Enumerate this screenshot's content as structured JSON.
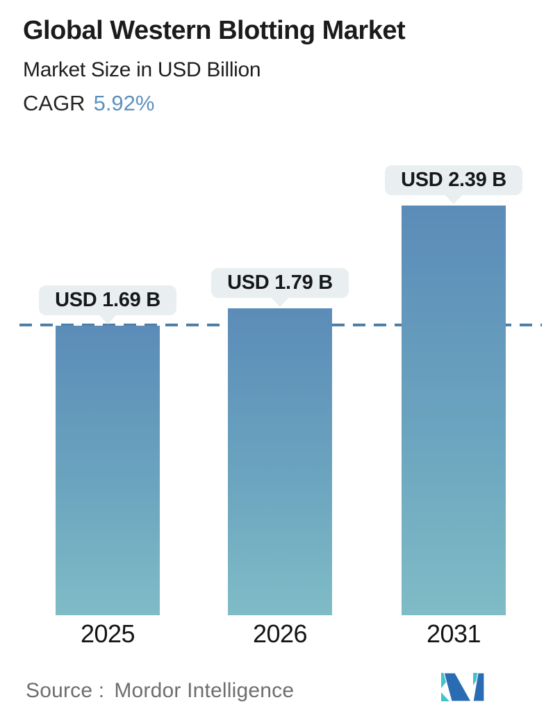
{
  "header": {
    "title": "Global Western Blotting Market",
    "subtitle": "Market Size in USD Billion",
    "cagr_label": "CAGR",
    "cagr_value": "5.92%"
  },
  "chart_data": {
    "type": "bar",
    "title": "Global Western Blotting Market",
    "subtitle": "Market Size in USD Billion",
    "cagr": "5.92%",
    "unit": "USD Billion",
    "categories": [
      "2025",
      "2026",
      "2031"
    ],
    "values": [
      1.69,
      1.79,
      2.39
    ],
    "bar_labels": [
      "USD 1.69 B",
      "USD 1.79 B",
      "USD 2.39 B"
    ],
    "reference_line_value": 1.69,
    "ylim": [
      0,
      2.55
    ],
    "grid": false,
    "legend": false,
    "colors": {
      "bar_gradient_top": "#5b8cb8",
      "bar_gradient_bottom": "#7fbcc6",
      "dashed_line": "#4d80a9",
      "callout_bg": "#e9eef0",
      "cagr_value": "#5d91bd",
      "source_text": "#6e6e6e",
      "logo_teal": "#44c3c8",
      "logo_blue": "#2a6cb4"
    }
  },
  "footer": {
    "source_label": "Source :",
    "source_text": "Mordor Intelligence",
    "logo": "mordor-intelligence-logo"
  }
}
